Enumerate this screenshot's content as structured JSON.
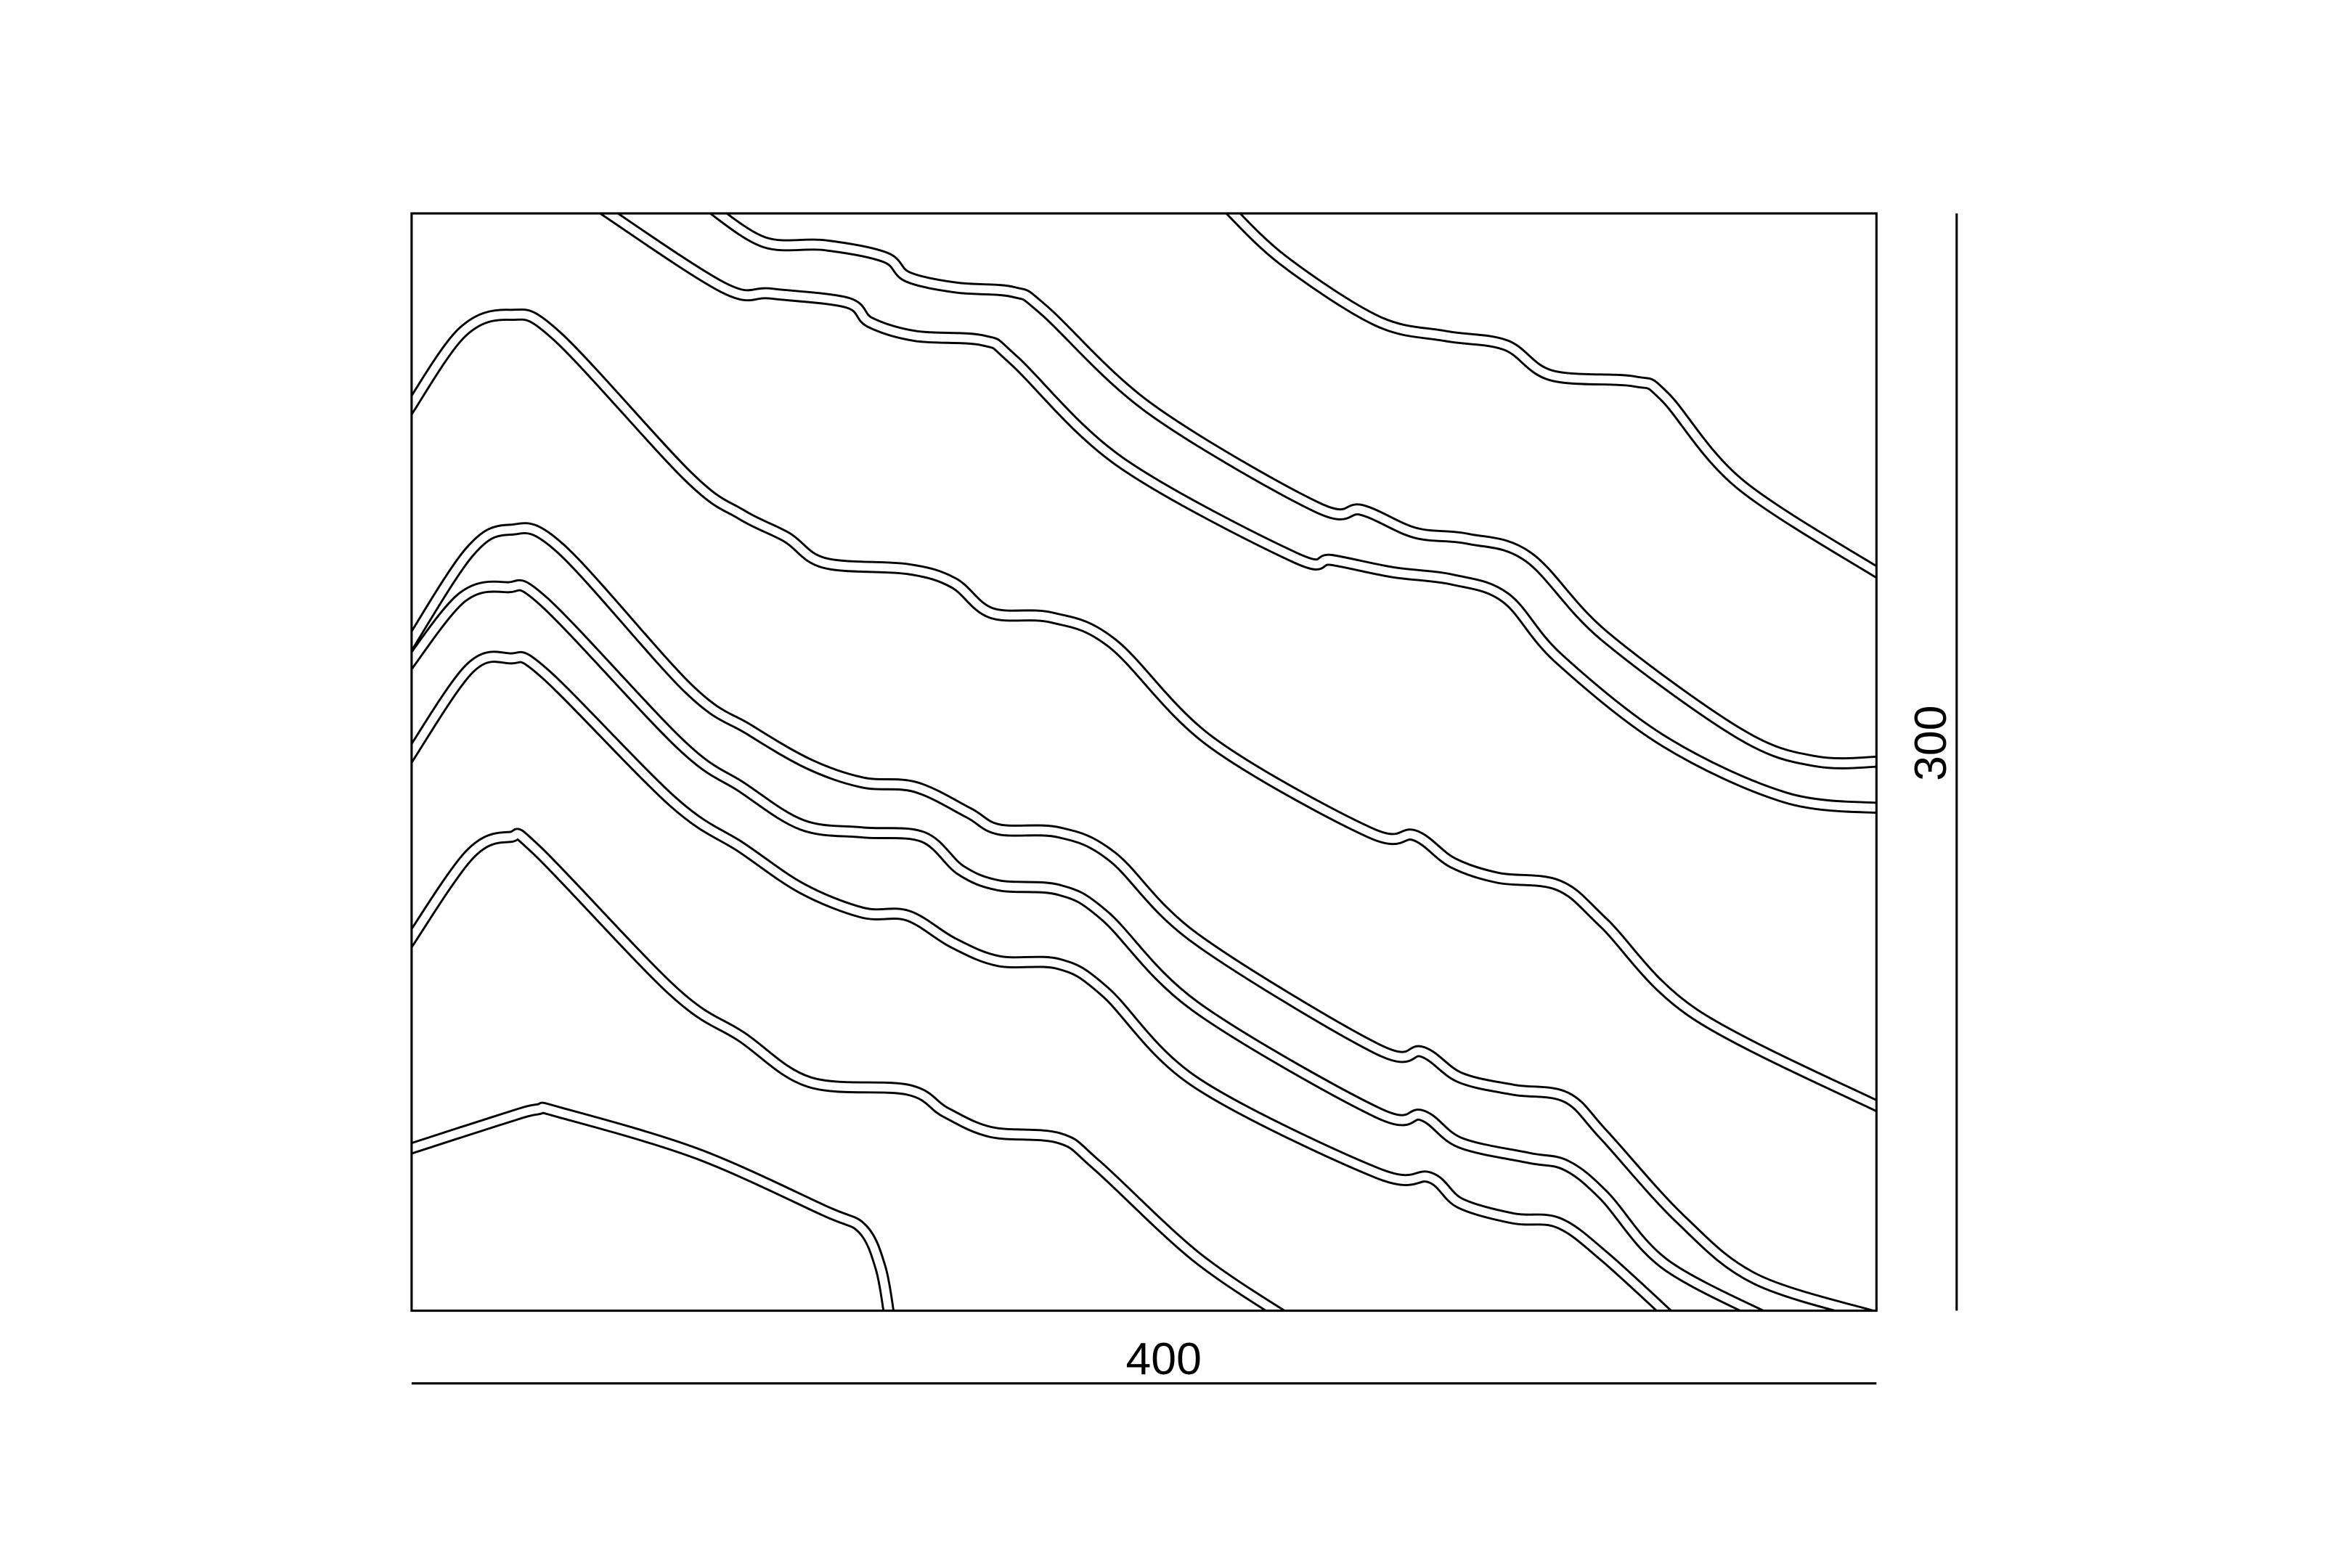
{
  "drawing": {
    "width_label": "400",
    "height_label": "300",
    "line_color": "#000000",
    "background": "#ffffff"
  }
}
